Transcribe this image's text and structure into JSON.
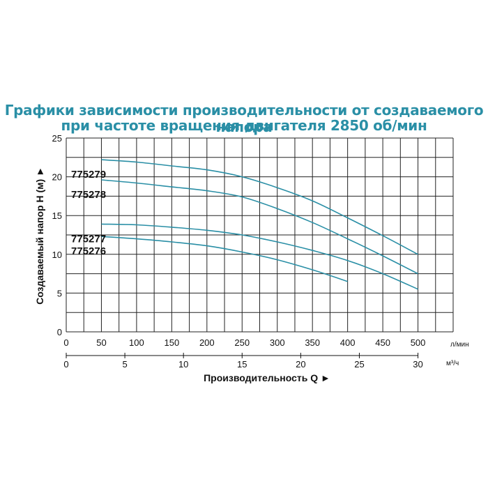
{
  "chart_data": {
    "type": "line",
    "title": "Графики зависимости производительности от создаваемого напора",
    "subtitle": "при частоте вращения двигателя 2850 об/мин",
    "ylabel": "Создаваемый напор H (м) ►",
    "xlabel": "Производительность Q ►",
    "ylim": [
      0,
      25
    ],
    "yticks": [
      "0",
      "5",
      "10",
      "15",
      "20",
      "25"
    ],
    "xlim": [
      0,
      550
    ],
    "x_unit": "л/мин",
    "xticks": [
      "0",
      "50",
      "100",
      "150",
      "200",
      "250",
      "300",
      "350",
      "400",
      "450",
      "500"
    ],
    "secondary_x_unit": "м³/ч",
    "secondary_xticks": [
      "0",
      "5",
      "10",
      "15",
      "20",
      "25",
      "30"
    ],
    "grid": true,
    "series": [
      {
        "name": "775279",
        "x": [
          50,
          100,
          150,
          200,
          250,
          300,
          350,
          400,
          450,
          500
        ],
        "y": [
          22.2,
          21.9,
          21.4,
          20.9,
          20.0,
          18.6,
          16.9,
          14.7,
          12.4,
          10.0
        ]
      },
      {
        "name": "775278",
        "x": [
          50,
          100,
          150,
          200,
          250,
          300,
          350,
          400,
          450,
          500
        ],
        "y": [
          19.6,
          19.2,
          18.7,
          18.2,
          17.4,
          15.9,
          14.1,
          12.0,
          9.8,
          7.5
        ]
      },
      {
        "name": "775277",
        "x": [
          50,
          100,
          150,
          200,
          250,
          300,
          350,
          400,
          450,
          500
        ],
        "y": [
          13.9,
          13.8,
          13.5,
          13.1,
          12.5,
          11.6,
          10.5,
          9.2,
          7.5,
          5.5
        ]
      },
      {
        "name": "775276",
        "x": [
          50,
          100,
          150,
          200,
          250,
          300,
          350,
          400
        ],
        "y": [
          12.3,
          12.0,
          11.6,
          11.1,
          10.3,
          9.3,
          8.0,
          6.5
        ]
      }
    ]
  },
  "colors": {
    "curve": "#2a8fa6",
    "title": "#2a8fa6",
    "grid": "#222222"
  }
}
